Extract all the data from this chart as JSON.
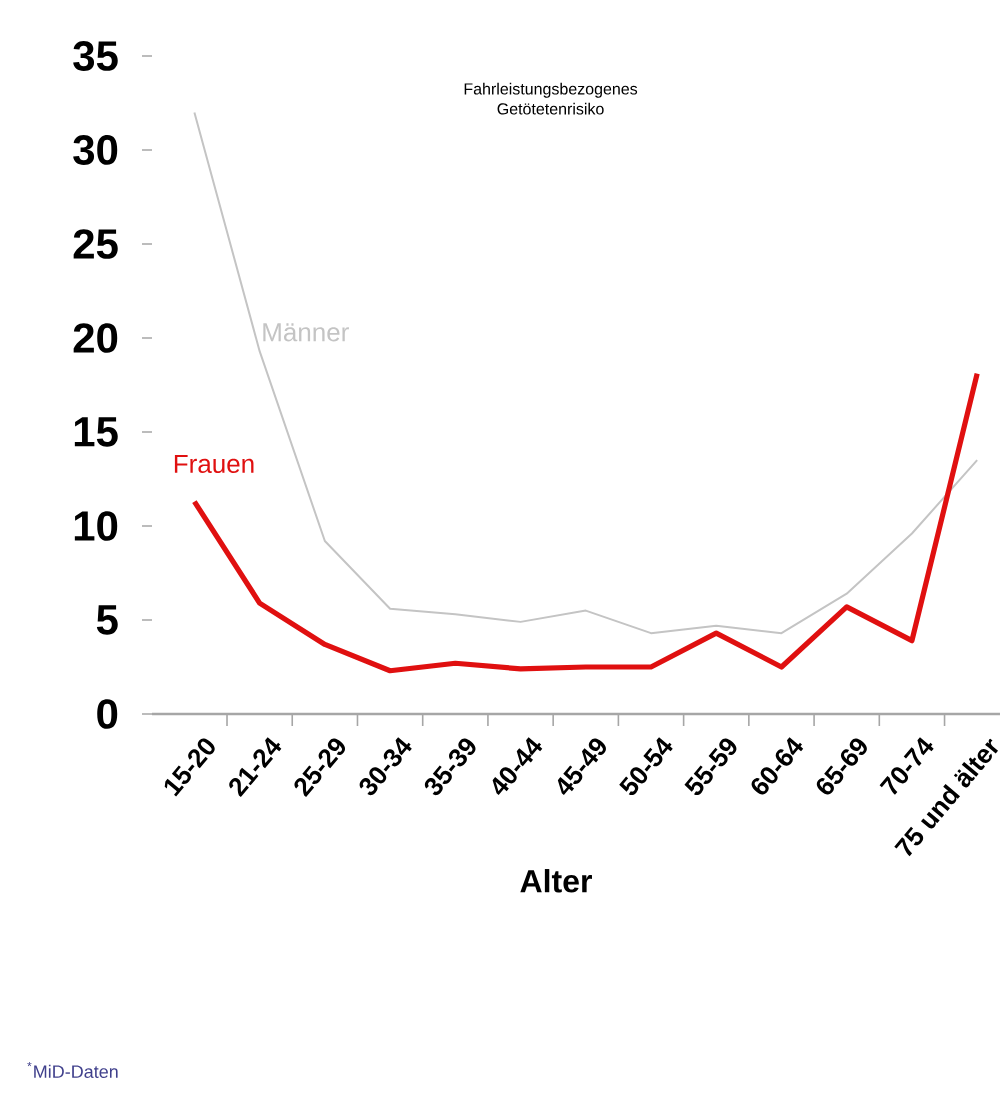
{
  "chart_data": {
    "type": "line",
    "title": "Fahrleistungsbezogenes Getötetenrisiko",
    "xlabel": "Alter",
    "categories": [
      "15-20",
      "21-24",
      "25-29",
      "30-34",
      "35-39",
      "40-44",
      "45-49",
      "50-54",
      "55-59",
      "60-64",
      "65-69",
      "70-74",
      "75 und älter"
    ],
    "series": [
      {
        "name": "Männer",
        "color": "#c4c4c4",
        "values": [
          32,
          19.3,
          9.2,
          5.6,
          5.3,
          4.9,
          5.5,
          4.3,
          4.7,
          4.3,
          6.4,
          9.6,
          13.5
        ]
      },
      {
        "name": "Frauen",
        "color": "#e01010",
        "values": [
          11.3,
          5.9,
          3.7,
          2.3,
          2.7,
          2.4,
          2.5,
          2.5,
          4.3,
          2.5,
          5.7,
          3.9,
          18.1
        ]
      }
    ],
    "ylim": [
      0,
      35
    ],
    "yticks": [
      0,
      5,
      10,
      15,
      20,
      25,
      30,
      35
    ],
    "annotations": [
      "$^{*}$MiD-Daten"
    ]
  }
}
